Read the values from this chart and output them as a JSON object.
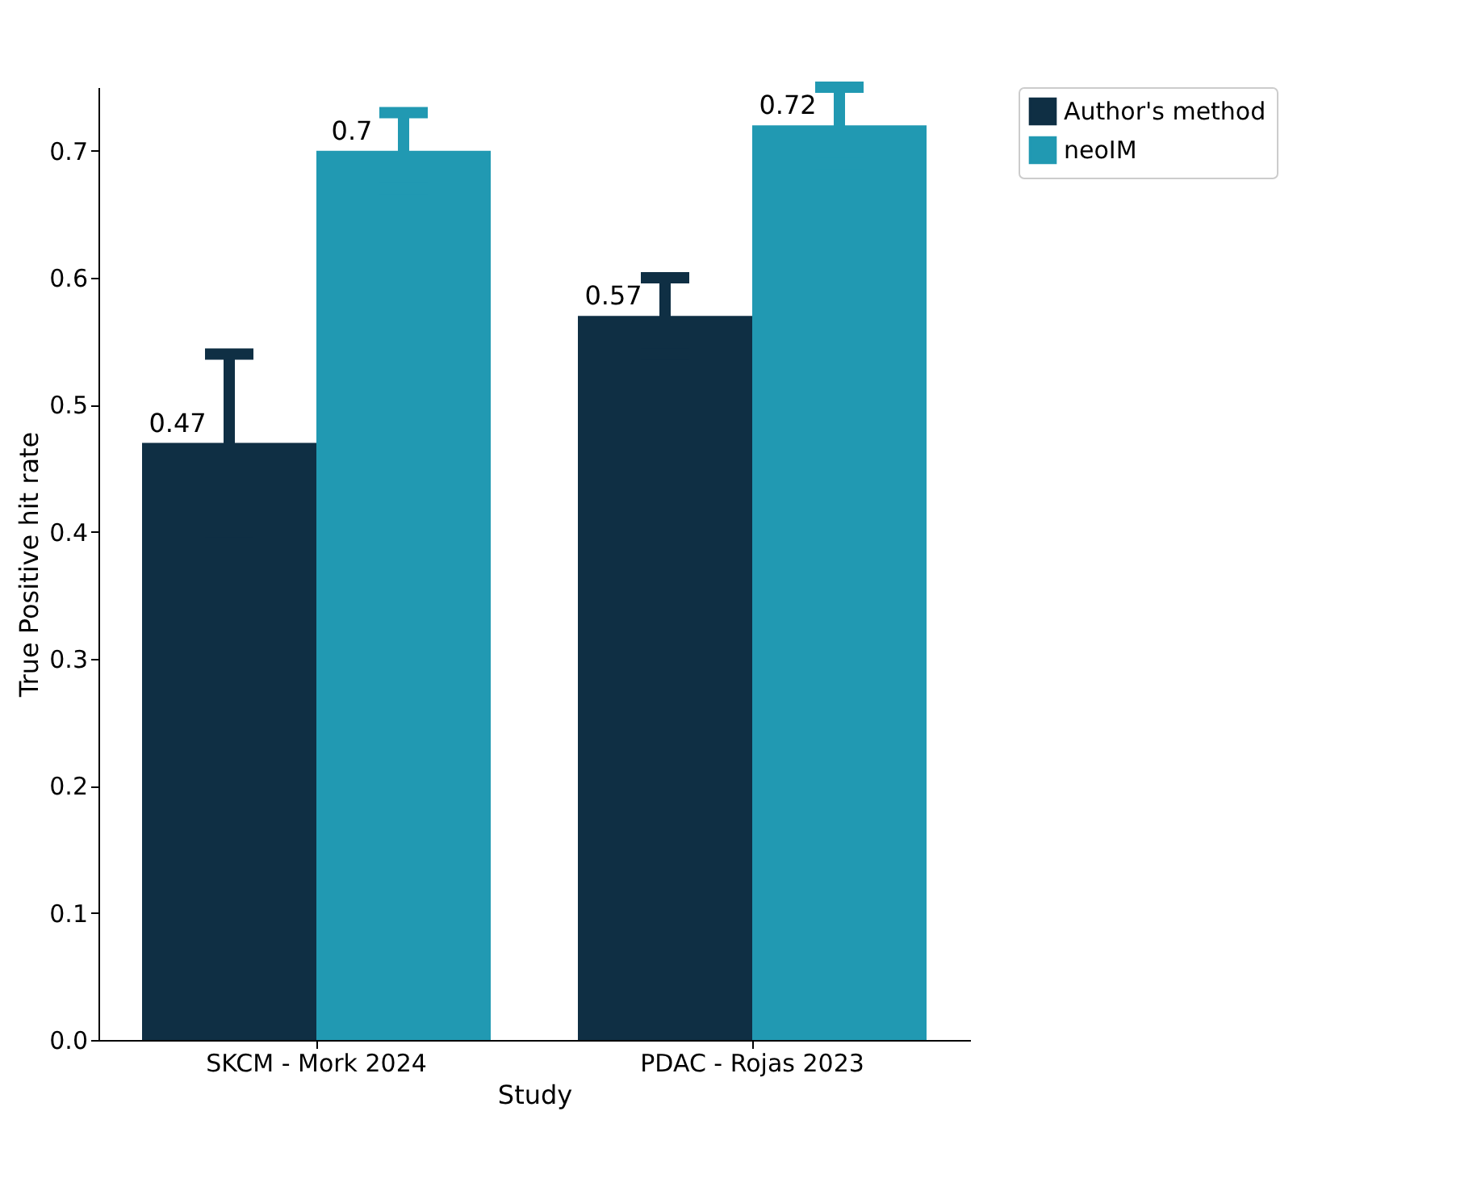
{
  "chart_data": {
    "type": "bar",
    "xlabel": "Study",
    "ylabel": "True Positive hit rate",
    "categories": [
      "SKCM - Mork 2024",
      "PDAC - Rojas 2023"
    ],
    "series": [
      {
        "name": "Author's method",
        "color": "#0f2f44",
        "values": [
          0.47,
          0.57
        ],
        "errors": [
          0.07,
          0.03
        ]
      },
      {
        "name": "neoIM",
        "color": "#2199b2",
        "values": [
          0.7,
          0.72
        ],
        "errors": [
          0.03,
          0.03
        ]
      }
    ],
    "ylim": [
      0,
      0.75
    ],
    "yticks": [
      {
        "value": 0,
        "label": "0.0"
      },
      {
        "value": 0.1,
        "label": "0.1"
      },
      {
        "value": 0.2,
        "label": "0.2"
      },
      {
        "value": 0.3,
        "label": "0.3"
      },
      {
        "value": 0.4,
        "label": "0.4"
      },
      {
        "value": 0.5,
        "label": "0.5"
      },
      {
        "value": 0.6,
        "label": "0.6"
      },
      {
        "value": 0.7,
        "label": "0.7"
      }
    ],
    "data_labels": true,
    "legend": "top right",
    "grid": false
  }
}
